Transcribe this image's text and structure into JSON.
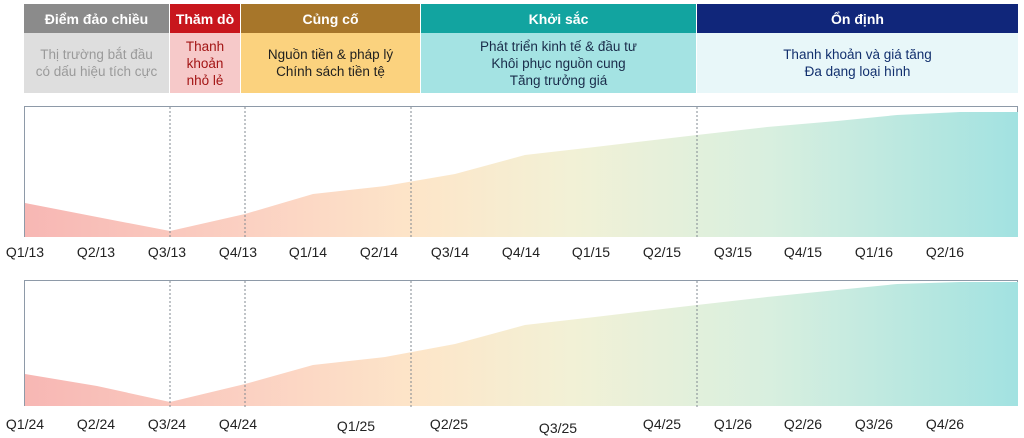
{
  "phases": [
    {
      "title": "Điểm đảo chiều",
      "lines": [
        "Thị trường bắt đầu",
        "có dấu hiệu tích cực"
      ],
      "head_color": "#8b8b8b",
      "body_color": "#dedede",
      "text_color": "#9a9a9a"
    },
    {
      "title": "Thăm dò",
      "lines": [
        "Thanh",
        "khoản",
        "nhỏ lẻ"
      ],
      "head_color": "#c8161d",
      "body_color": "#f6c9c9",
      "text_color": "#a31515"
    },
    {
      "title": "Củng cố",
      "lines": [
        "Nguồn tiền & pháp lý",
        "Chính sách tiền tệ"
      ],
      "head_color": "#a7762a",
      "body_color": "#fbd27e",
      "text_color": "#1f1f1f"
    },
    {
      "title": "Khởi sắc",
      "lines": [
        "Phát triển kinh tế & đầu tư",
        "Khôi phục nguồn cung",
        "Tăng trưởng giá"
      ],
      "head_color": "#12a4a0",
      "body_color": "#a4e3e3",
      "text_color": "#1a2c4a"
    },
    {
      "title": "Ổn định",
      "lines": [
        "Thanh khoản và giá tăng",
        "Đa dạng loại hình"
      ],
      "head_color": "#10267a",
      "body_color": "#e8f7f9",
      "text_color": "#12306e"
    }
  ],
  "charts": [
    {
      "ticks": [
        "Q1/13",
        "Q2/13",
        "Q3/13",
        "Q4/13",
        "Q1/14",
        "Q2/14",
        "Q3/14",
        "Q4/14",
        "Q1/15",
        "Q2/15",
        "Q3/15",
        "Q4/15",
        "Q1/16",
        "Q2/16"
      ]
    },
    {
      "ticks": [
        "Q1/24",
        "Q2/24",
        "Q3/24",
        "Q4/24",
        "Q1/25",
        "Q2/25",
        "Q3/25",
        "Q4/25",
        "Q1/26",
        "Q2/26",
        "Q3/26",
        "Q4/26"
      ]
    }
  ]
}
